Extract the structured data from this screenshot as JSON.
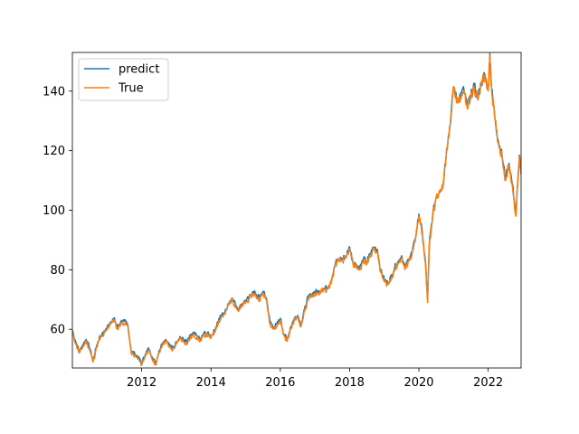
{
  "chart_data": {
    "type": "line",
    "title": "",
    "xlabel": "",
    "ylabel": "",
    "xlim": [
      2010.0,
      2022.95
    ],
    "ylim": [
      47,
      153
    ],
    "grid": false,
    "legend_position": "top-left",
    "xticks": [
      {
        "value": 2012,
        "label": "2012"
      },
      {
        "value": 2014,
        "label": "2014"
      },
      {
        "value": 2016,
        "label": "2016"
      },
      {
        "value": 2018,
        "label": "2018"
      },
      {
        "value": 2020,
        "label": "2020"
      },
      {
        "value": 2022,
        "label": "2022"
      }
    ],
    "yticks": [
      {
        "value": 60,
        "label": "60"
      },
      {
        "value": 80,
        "label": "80"
      },
      {
        "value": 100,
        "label": "100"
      },
      {
        "value": 120,
        "label": "120"
      },
      {
        "value": 140,
        "label": "140"
      }
    ],
    "series": [
      {
        "name": "predict",
        "color": "#1f77b4"
      },
      {
        "name": "True",
        "color": "#ff7f0e"
      }
    ],
    "x": [
      2010.0,
      2010.1,
      2010.2,
      2010.3,
      2010.4,
      2010.5,
      2010.6,
      2010.7,
      2010.8,
      2010.9,
      2011.0,
      2011.1,
      2011.2,
      2011.3,
      2011.4,
      2011.5,
      2011.6,
      2011.7,
      2011.8,
      2011.9,
      2012.0,
      2012.1,
      2012.2,
      2012.3,
      2012.4,
      2012.5,
      2012.6,
      2012.7,
      2012.8,
      2012.9,
      2013.0,
      2013.1,
      2013.2,
      2013.3,
      2013.4,
      2013.5,
      2013.6,
      2013.7,
      2013.8,
      2013.9,
      2014.0,
      2014.1,
      2014.2,
      2014.3,
      2014.4,
      2014.5,
      2014.6,
      2014.7,
      2014.8,
      2014.9,
      2015.0,
      2015.1,
      2015.2,
      2015.3,
      2015.4,
      2015.5,
      2015.6,
      2015.7,
      2015.8,
      2015.9,
      2016.0,
      2016.1,
      2016.2,
      2016.3,
      2016.4,
      2016.5,
      2016.6,
      2016.7,
      2016.8,
      2016.9,
      2017.0,
      2017.1,
      2017.2,
      2017.3,
      2017.4,
      2017.5,
      2017.6,
      2017.7,
      2017.8,
      2017.9,
      2018.0,
      2018.1,
      2018.2,
      2018.3,
      2018.4,
      2018.5,
      2018.6,
      2018.7,
      2018.8,
      2018.9,
      2019.0,
      2019.1,
      2019.2,
      2019.3,
      2019.4,
      2019.5,
      2019.6,
      2019.7,
      2019.8,
      2019.9,
      2020.0,
      2020.1,
      2020.2,
      2020.25,
      2020.3,
      2020.4,
      2020.5,
      2020.6,
      2020.7,
      2020.8,
      2020.9,
      2021.0,
      2021.1,
      2021.2,
      2021.3,
      2021.4,
      2021.5,
      2021.6,
      2021.7,
      2021.8,
      2021.9,
      2022.0,
      2022.05,
      2022.1,
      2022.2,
      2022.3,
      2022.4,
      2022.5,
      2022.6,
      2022.7,
      2022.8,
      2022.9,
      2022.95
    ],
    "true_values": [
      59,
      55,
      52,
      54,
      56,
      53,
      49,
      54,
      57,
      58,
      60,
      62,
      63,
      60,
      62,
      62,
      61,
      52,
      51,
      50,
      48,
      51,
      53,
      50,
      48,
      52,
      55,
      56,
      54,
      53,
      55,
      57,
      56,
      55,
      57,
      58,
      57,
      56,
      58,
      58,
      57,
      59,
      62,
      64,
      65,
      68,
      70,
      68,
      66,
      68,
      69,
      70,
      72,
      71,
      70,
      72,
      70,
      62,
      60,
      61,
      63,
      58,
      56,
      60,
      63,
      64,
      61,
      66,
      70,
      71,
      72,
      72,
      73,
      73,
      74,
      77,
      82,
      83,
      83,
      84,
      87,
      82,
      81,
      80,
      83,
      82,
      85,
      87,
      86,
      79,
      76,
      75,
      77,
      80,
      82,
      84,
      80,
      83,
      85,
      90,
      98,
      92,
      80,
      69,
      88,
      98,
      104,
      106,
      108,
      120,
      128,
      141,
      136,
      138,
      140,
      134,
      138,
      141,
      137,
      142,
      145,
      140,
      152,
      140,
      130,
      122,
      118,
      110,
      115,
      108,
      98,
      118,
      112
    ],
    "predict_offset": [
      0.6,
      0.7,
      0.5,
      0.8,
      0.6,
      0.7,
      0.5,
      0.6,
      0.8,
      0.6,
      0.7,
      0.5,
      0.6,
      0.8,
      0.6,
      0.7,
      0.5,
      0.6,
      0.8,
      0.6,
      0.7,
      0.5,
      0.6,
      0.8,
      0.6,
      0.7,
      0.5,
      0.6,
      0.8,
      0.6,
      0.7,
      0.5,
      0.6,
      0.8,
      0.6,
      0.7,
      0.5,
      0.6,
      0.8,
      0.6,
      0.7,
      0.5,
      0.6,
      0.8,
      0.6,
      0.7,
      0.5,
      0.6,
      0.8,
      0.6,
      0.7,
      0.5,
      0.6,
      0.8,
      0.6,
      0.7,
      0.5,
      0.6,
      0.8,
      0.6,
      0.7,
      0.5,
      0.6,
      0.8,
      0.6,
      0.7,
      0.5,
      0.6,
      0.8,
      0.6,
      0.7,
      0.5,
      0.6,
      0.8,
      0.6,
      0.7,
      0.5,
      0.6,
      0.8,
      0.6,
      0.7,
      0.5,
      0.6,
      0.8,
      0.6,
      0.7,
      0.5,
      0.6,
      0.8,
      0.6,
      0.7,
      0.5,
      0.6,
      0.8,
      0.6,
      0.7,
      0.5,
      0.6,
      0.8,
      0.6,
      0.7,
      0.5,
      0.6,
      0.8,
      0.6,
      0.7,
      0.5,
      0.6,
      0.8,
      0.6,
      0.7,
      0.5,
      0.6,
      0.8,
      0.6,
      0.7,
      0.5,
      0.6,
      0.8,
      0.6,
      0.7,
      0.5,
      0.6,
      0.8,
      0.6,
      0.7,
      0.5,
      0.6,
      0.8,
      0.6,
      0.7,
      0.5,
      0.6
    ]
  }
}
